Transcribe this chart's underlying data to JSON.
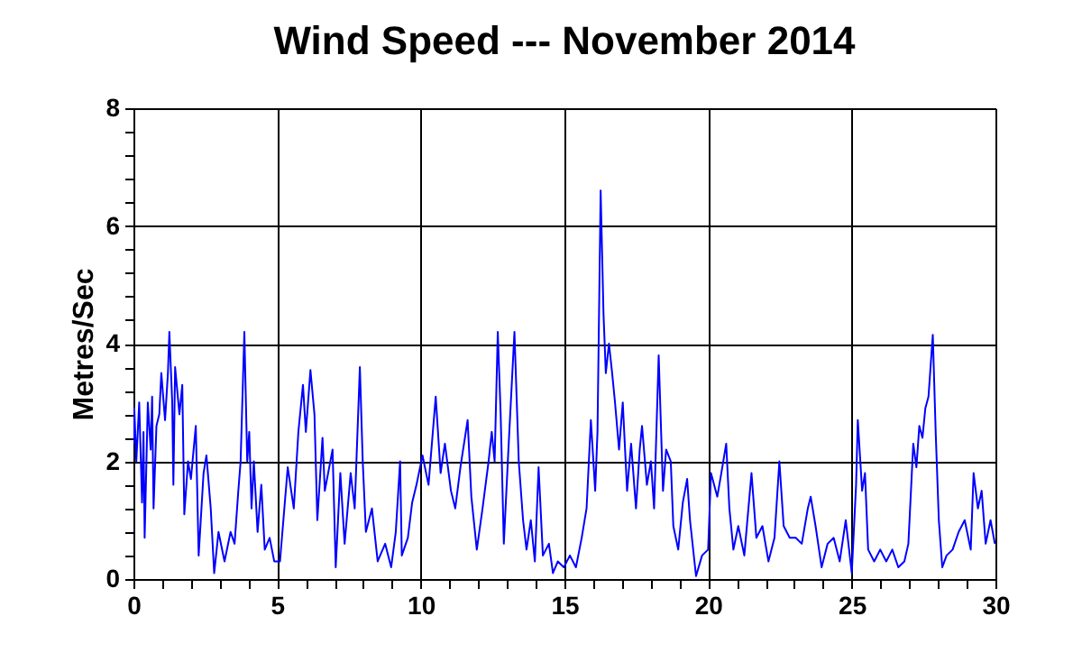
{
  "chart_data": {
    "type": "line",
    "title": "Wind Speed --- November 2014",
    "ylabel": "Metres/Sec",
    "x": [
      0,
      0.03,
      0.1,
      0.2,
      0.3,
      0.35,
      0.39,
      0.5,
      0.6,
      0.65,
      0.7,
      0.8,
      0.9,
      0.97,
      1.1,
      1.2,
      1.25,
      1.35,
      1.39,
      1.45,
      1.6,
      1.7,
      1.77,
      1.9,
      2.0,
      2.17,
      2.27,
      2.44,
      2.54,
      2.69,
      2.81,
      2.96,
      3.17,
      3.38,
      3.52,
      3.65,
      3.73,
      3.86,
      3.96,
      4.03,
      4.11,
      4.19,
      4.32,
      4.45,
      4.57,
      4.74,
      4.9,
      5.1,
      5.37,
      5.58,
      5.74,
      5.9,
      6.0,
      6.16,
      6.3,
      6.4,
      6.58,
      6.66,
      6.93,
      7.04,
      7.2,
      7.35,
      7.56,
      7.7,
      7.88,
      7.98,
      8.09,
      8.3,
      8.5,
      8.76,
      8.97,
      9.13,
      9.28,
      9.34,
      9.55,
      9.7,
      9.85,
      10.06,
      10.27,
      10.42,
      10.52,
      10.69,
      10.84,
      11.05,
      11.2,
      11.38,
      11.63,
      11.76,
      11.95,
      12.15,
      12.36,
      12.47,
      12.57,
      12.68,
      12.78,
      12.89,
      13.05,
      13.26,
      13.41,
      13.56,
      13.68,
      13.83,
      13.97,
      14.1,
      14.25,
      14.46,
      14.6,
      14.77,
      14.98,
      15.19,
      15.4,
      15.6,
      15.77,
      15.92,
      16.07,
      16.15,
      16.26,
      16.36,
      16.44,
      16.55,
      16.66,
      16.76,
      16.9,
      17.03,
      17.18,
      17.32,
      17.49,
      17.62,
      17.7,
      17.87,
      18.01,
      18.12,
      18.28,
      18.43,
      18.54,
      18.7,
      18.79,
      18.96,
      19.12,
      19.27,
      19.37,
      19.58,
      19.79,
      20.0,
      20.1,
      20.32,
      20.46,
      20.63,
      20.74,
      20.88,
      21.05,
      21.26,
      21.51,
      21.68,
      21.89,
      22.1,
      22.31,
      22.48,
      22.63,
      22.84,
      23.05,
      23.26,
      23.47,
      23.57,
      23.74,
      23.95,
      24.16,
      24.37,
      24.58,
      24.79,
      25.0,
      25.15,
      25.21,
      25.36,
      25.46,
      25.57,
      25.78,
      25.99,
      26.2,
      26.41,
      26.62,
      26.83,
      26.97,
      27.14,
      27.25,
      27.35,
      27.46,
      27.56,
      27.67,
      27.77,
      27.82,
      27.92,
      28.03,
      28.15,
      28.3,
      28.51,
      28.72,
      28.93,
      29.14,
      29.24,
      29.39,
      29.52,
      29.66,
      29.83,
      29.98
    ],
    "series": [
      {
        "color": "#0000ff",
        "values": [
          2.3,
          2.9,
          2.0,
          3.0,
          1.3,
          2.5,
          0.7,
          3.0,
          2.2,
          3.1,
          1.2,
          2.6,
          2.8,
          3.5,
          2.7,
          3.5,
          4.2,
          3.0,
          1.6,
          3.6,
          2.8,
          3.3,
          1.1,
          2.0,
          1.7,
          2.6,
          0.4,
          1.8,
          2.1,
          1.2,
          0.1,
          0.8,
          0.3,
          0.8,
          0.6,
          1.5,
          2.0,
          4.2,
          2.0,
          2.5,
          1.2,
          2.0,
          0.8,
          1.6,
          0.5,
          0.7,
          0.3,
          0.3,
          1.9,
          1.2,
          2.5,
          3.3,
          2.5,
          3.55,
          2.8,
          1.0,
          2.4,
          1.5,
          2.2,
          0.2,
          1.8,
          0.6,
          1.8,
          1.2,
          3.6,
          2.0,
          0.8,
          1.2,
          0.3,
          0.6,
          0.2,
          0.8,
          2.0,
          0.4,
          0.7,
          1.3,
          1.6,
          2.1,
          1.6,
          2.5,
          3.1,
          1.8,
          2.3,
          1.5,
          1.2,
          1.9,
          2.7,
          1.4,
          0.5,
          1.2,
          2.0,
          2.5,
          2.0,
          4.2,
          2.8,
          0.6,
          2.2,
          4.2,
          2.0,
          1.0,
          0.5,
          1.0,
          0.3,
          1.9,
          0.4,
          0.6,
          0.1,
          0.3,
          0.2,
          0.4,
          0.2,
          0.7,
          1.2,
          2.7,
          1.5,
          2.5,
          6.6,
          4.5,
          3.5,
          4.0,
          3.5,
          3.0,
          2.2,
          3.0,
          1.5,
          2.3,
          1.2,
          2.2,
          2.6,
          1.6,
          2.0,
          1.2,
          3.8,
          1.5,
          2.2,
          2.0,
          0.9,
          0.5,
          1.3,
          1.7,
          1.0,
          0.05,
          0.4,
          0.5,
          1.8,
          1.4,
          1.8,
          2.3,
          1.2,
          0.5,
          0.9,
          0.4,
          1.8,
          0.7,
          0.9,
          0.3,
          0.7,
          2.0,
          0.9,
          0.7,
          0.7,
          0.6,
          1.2,
          1.4,
          0.9,
          0.2,
          0.6,
          0.7,
          0.3,
          1.0,
          0.1,
          1.6,
          2.7,
          1.5,
          1.8,
          0.5,
          0.3,
          0.5,
          0.3,
          0.5,
          0.2,
          0.3,
          0.6,
          2.3,
          1.9,
          2.6,
          2.4,
          2.9,
          3.1,
          3.8,
          4.15,
          2.5,
          1.0,
          0.2,
          0.4,
          0.5,
          0.8,
          1.0,
          0.5,
          1.8,
          1.2,
          1.5,
          0.6,
          1.0,
          0.6
        ]
      }
    ],
    "xlim": [
      0,
      30
    ],
    "xticks": [
      0,
      {
        "value": 1,
        "label": null
      },
      {
        "value": 2,
        "label": null
      },
      {
        "value": 3,
        "label": null
      },
      {
        "value": 4,
        "label": null
      },
      5,
      {
        "value": 6,
        "label": null
      },
      {
        "value": 7,
        "label": null
      },
      {
        "value": 8,
        "label": null
      },
      {
        "value": 9,
        "label": null
      },
      10,
      {
        "value": 11,
        "label": null
      },
      {
        "value": 12,
        "label": null
      },
      {
        "value": 13,
        "label": null
      },
      {
        "value": 14,
        "label": null
      },
      15,
      {
        "value": 16,
        "label": null
      },
      {
        "value": 17,
        "label": null
      },
      {
        "value": 18,
        "label": null
      },
      {
        "value": 19,
        "label": null
      },
      20,
      {
        "value": 21,
        "label": null
      },
      {
        "value": 22,
        "label": null
      },
      {
        "value": 23,
        "label": null
      },
      {
        "value": 24,
        "label": null
      },
      25,
      {
        "value": 26,
        "label": null
      },
      {
        "value": 27,
        "label": null
      },
      {
        "value": 28,
        "label": null
      },
      {
        "value": 29,
        "label": null
      },
      30
    ],
    "ylim": [
      0,
      8
    ],
    "yticks": [
      0,
      {
        "value": 0.4,
        "label": null
      },
      {
        "value": 0.8,
        "label": null
      },
      {
        "value": 1.2,
        "label": null
      },
      {
        "value": 1.6,
        "label": null
      },
      2,
      {
        "value": 2.4,
        "label": null
      },
      {
        "value": 2.8,
        "label": null
      },
      {
        "value": 3.2,
        "label": null
      },
      {
        "value": 3.6,
        "label": null
      },
      4,
      {
        "value": 4.4,
        "label": null
      },
      {
        "value": 4.8,
        "label": null
      },
      {
        "value": 5.2,
        "label": null
      },
      {
        "value": 5.6,
        "label": null
      },
      6,
      {
        "value": 6.4,
        "label": null
      },
      {
        "value": 6.8,
        "label": null
      },
      {
        "value": 7.2,
        "label": null
      },
      {
        "value": 7.6,
        "label": null
      },
      8
    ],
    "grid": true,
    "marker": "none",
    "line_style": "solid"
  }
}
